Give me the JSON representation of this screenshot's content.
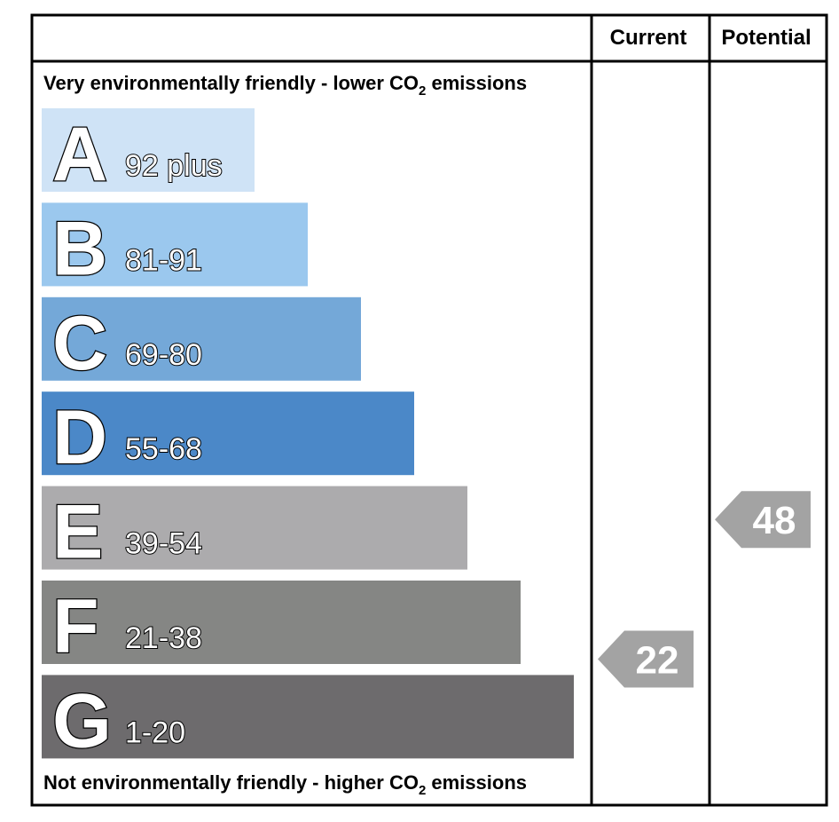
{
  "chart_data": {
    "type": "bar",
    "headers": {
      "current": "Current",
      "potential": "Potential"
    },
    "top_caption": {
      "text": "Very environmentally friendly - lower CO",
      "sub": "2",
      "tail": " emissions"
    },
    "bottom_caption": {
      "text": "Not environmentally friendly - higher CO",
      "sub": "2",
      "tail": " emissions"
    },
    "bands": [
      {
        "letter": "A",
        "range": "92 plus",
        "min": 92,
        "color": "#cfe3f6"
      },
      {
        "letter": "B",
        "range": "81-91",
        "min": 81,
        "color": "#9bc8ee"
      },
      {
        "letter": "C",
        "range": "69-80",
        "min": 69,
        "color": "#74a8d8"
      },
      {
        "letter": "D",
        "range": "55-68",
        "min": 55,
        "color": "#4b88c8"
      },
      {
        "letter": "E",
        "range": "39-54",
        "min": 39,
        "color": "#acabad"
      },
      {
        "letter": "F",
        "range": "21-38",
        "min": 21,
        "color": "#858684"
      },
      {
        "letter": "G",
        "range": "1-20",
        "min": 1,
        "color": "#6d6b6d"
      }
    ],
    "ratings": {
      "current": {
        "value": 22,
        "label": "22",
        "color": "#a3a3a3"
      },
      "potential": {
        "value": 48,
        "label": "48",
        "color": "#a3a3a3"
      }
    }
  }
}
